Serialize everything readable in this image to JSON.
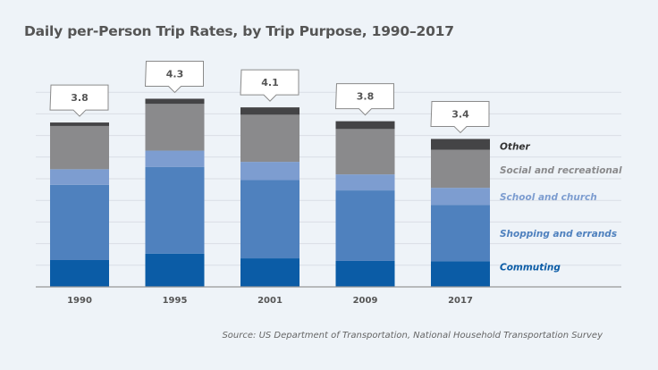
{
  "chart_data": {
    "type": "bar",
    "stacked": true,
    "title": "Daily per-Person Trip Rates, by Trip Purpose, 1990–2017",
    "source": "Source: US Department of Transportation, National Household Transportation Survey",
    "categories": [
      "1990",
      "1995",
      "2001",
      "2009",
      "2017"
    ],
    "totals_labels": [
      "3.8",
      "4.3",
      "4.1",
      "3.8",
      "3.4"
    ],
    "ylim": [
      0,
      4.6
    ],
    "grid": true,
    "grid_step": 0.5,
    "legend_placement": "right",
    "series": [
      {
        "name": "Commuting",
        "color": "#0b5ca6",
        "values": [
          0.62,
          0.77,
          0.66,
          0.6,
          0.59
        ]
      },
      {
        "name": "Shopping and errands",
        "color": "#4f81be",
        "values": [
          1.74,
          2.0,
          1.81,
          1.63,
          1.3
        ]
      },
      {
        "name": "School and church",
        "color": "#7d9dd0",
        "values": [
          0.36,
          0.38,
          0.42,
          0.37,
          0.4
        ]
      },
      {
        "name": "Social and recreational",
        "color": "#8a8a8c",
        "values": [
          1.0,
          1.08,
          1.09,
          1.05,
          0.88
        ]
      },
      {
        "name": "Other",
        "color": "#444446",
        "values": [
          0.08,
          0.12,
          0.17,
          0.18,
          0.25
        ]
      }
    ]
  }
}
